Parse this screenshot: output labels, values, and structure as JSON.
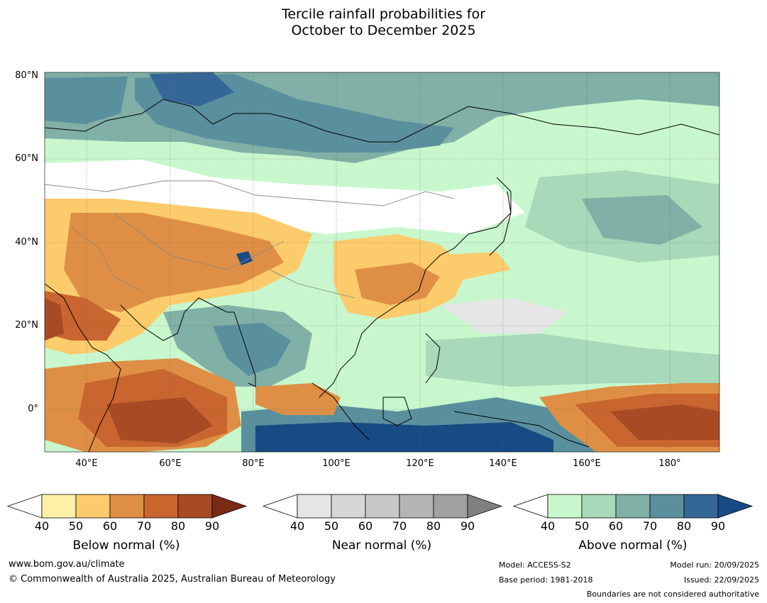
{
  "title_line1": "Tercile rainfall probabilities for",
  "title_line2": "October to December 2025",
  "map": {
    "lat_labels": [
      "80°N",
      "60°N",
      "40°N",
      "20°N",
      "0°"
    ],
    "lon_labels": [
      "40°E",
      "60°E",
      "80°E",
      "100°E",
      "120°E",
      "140°E",
      "160°E",
      "180°"
    ],
    "extent": {
      "lon_min": 30,
      "lon_max": 192,
      "lat_min": -10,
      "lat_max": 81
    }
  },
  "legend": {
    "below": {
      "label": "Below normal (%)",
      "ticks": [
        "40",
        "50",
        "60",
        "70",
        "80",
        "90"
      ],
      "colors": [
        "#fff0a8",
        "#fccb6b",
        "#de8f45",
        "#c9652f",
        "#a84a24",
        "#7b2a14"
      ]
    },
    "near": {
      "label": "Near normal (%)",
      "ticks": [
        "40",
        "50",
        "60",
        "70",
        "80",
        "90"
      ],
      "colors": [
        "#e6e6e6",
        "#d6d6d6",
        "#c8c8c8",
        "#b4b4b4",
        "#a0a0a0",
        "#808080"
      ]
    },
    "above": {
      "label": "Above normal (%)",
      "ticks": [
        "40",
        "50",
        "60",
        "70",
        "80",
        "90"
      ],
      "colors": [
        "#c8f7cd",
        "#a8d9b8",
        "#80b0a6",
        "#5a909d",
        "#356796",
        "#184a84"
      ]
    }
  },
  "footer": {
    "website": "www.bom.gov.au/climate",
    "copyright": "© Commonwealth of Australia 2025, Australian Bureau of Meteorology",
    "model": "Model: ACCESS-S2",
    "base_period": "Base period: 1981-2018",
    "model_run": "Model run: 20/09/2025",
    "issued": "Issued: 22/09/2025",
    "boundaries": "Boundaries are not considered authoritative"
  }
}
